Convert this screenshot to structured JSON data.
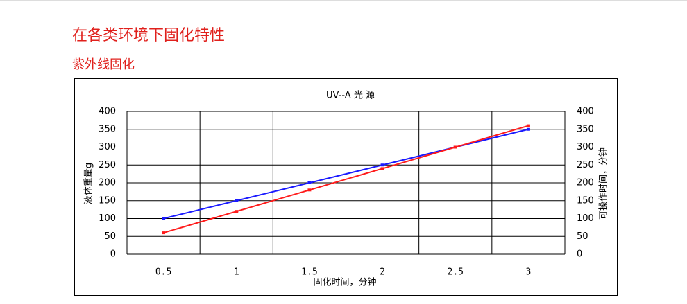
{
  "heading": "在各类环境下固化特性",
  "subheading": "紫外线固化",
  "chart_data": {
    "type": "line",
    "title": "UV--A 光 源",
    "x_label": "固化时间，分钟",
    "y_label": "液体重量g",
    "y2_label": "可操作时间，分钟",
    "categories": [
      "0.5",
      "1",
      "1.5",
      "2",
      "2.5",
      "3"
    ],
    "series": [
      {
        "color": "#1a1aff",
        "values": [
          100,
          150,
          200,
          250,
          300,
          350
        ]
      },
      {
        "color": "#ff1a1a",
        "values": [
          60,
          120,
          180,
          240,
          300,
          360
        ],
        "axis": "y2"
      }
    ],
    "ylim": [
      0,
      400
    ],
    "yticks": [
      0,
      50,
      100,
      150,
      200,
      250,
      300,
      350,
      400
    ],
    "y2lim": [
      0,
      400
    ],
    "y2ticks": [
      0,
      50,
      100,
      150,
      200,
      250,
      300,
      350,
      400
    ],
    "grid": true
  }
}
